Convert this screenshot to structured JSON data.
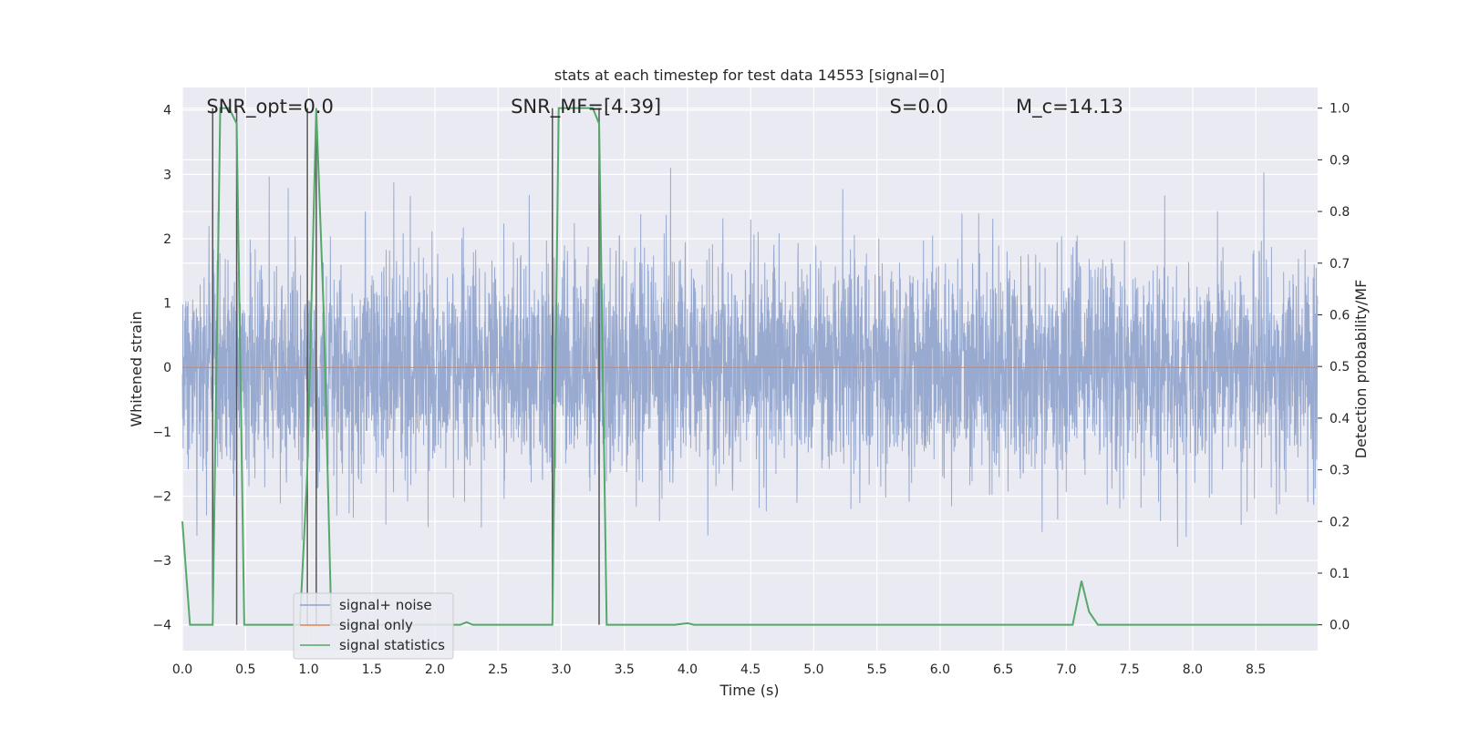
{
  "chart_data": {
    "type": "line",
    "title": "stats at each timestep for test data 14553 [signal=0]",
    "xlabel": "Time (s)",
    "ylabel": "Whitened strain",
    "y2label": "Detection probability/MF",
    "xlim": [
      0.0,
      8.99
    ],
    "ylim": [
      -4.4,
      4.35
    ],
    "y2lim": [
      -0.05,
      1.04
    ],
    "xticks": [
      "0.0",
      "0.5",
      "1.0",
      "1.5",
      "2.0",
      "2.5",
      "3.0",
      "3.5",
      "4.0",
      "4.5",
      "5.0",
      "5.5",
      "6.0",
      "6.5",
      "7.0",
      "7.5",
      "8.0",
      "8.5"
    ],
    "yticks": [
      "4",
      "3",
      "2",
      "1",
      "0",
      "−1",
      "−2",
      "−3",
      "−4"
    ],
    "y2ticks": [
      "1.0",
      "0.9",
      "0.8",
      "0.7",
      "0.6",
      "0.5",
      "0.4",
      "0.3",
      "0.2",
      "0.1",
      "0.0"
    ],
    "grid": true,
    "legend_location": "lower-left",
    "annotations": [
      {
        "x": 0.19,
        "text": "SNR_opt=0.0"
      },
      {
        "x": 2.6,
        "text": "SNR_MF=[4.39]"
      },
      {
        "x": 5.6,
        "text": "S=0.0"
      },
      {
        "x": 6.6,
        "text": "M_c=14.13"
      }
    ],
    "series": [
      {
        "name": "signal+ noise",
        "kind": "noise",
        "color": "#8fa3cc",
        "sample_rate": 2048,
        "seed": 14553,
        "sigma": 0.85
      },
      {
        "name": "signal only",
        "kind": "flat",
        "color": "#dd8452",
        "value": 0.0
      },
      {
        "name": "signal statistics",
        "kind": "step",
        "color": "#55a868",
        "x": [
          0.0,
          0.06,
          0.24,
          0.3,
          0.37,
          0.43,
          0.49,
          0.56,
          0.93,
          0.99,
          1.06,
          1.12,
          1.18,
          1.24,
          2.2,
          2.25,
          2.3,
          2.93,
          2.98,
          3.05,
          3.25,
          3.3,
          3.36,
          3.42,
          3.9,
          4.0,
          4.05,
          7.05,
          7.12,
          7.18,
          7.25,
          7.3,
          8.99
        ],
        "y": [
          0.2,
          0.0,
          0.0,
          1.0,
          1.0,
          0.97,
          0.0,
          0.0,
          0.0,
          0.3,
          1.0,
          0.6,
          0.0,
          0.0,
          0.0,
          0.005,
          0.0,
          0.0,
          1.0,
          1.0,
          1.0,
          0.97,
          0.0,
          0.0,
          0.0,
          0.003,
          0.0,
          0.0,
          0.085,
          0.025,
          0.0,
          0.0,
          0.0
        ]
      }
    ],
    "detection_lines": [
      0.24,
      0.43,
      0.99,
      1.06,
      2.93,
      3.3
    ]
  }
}
